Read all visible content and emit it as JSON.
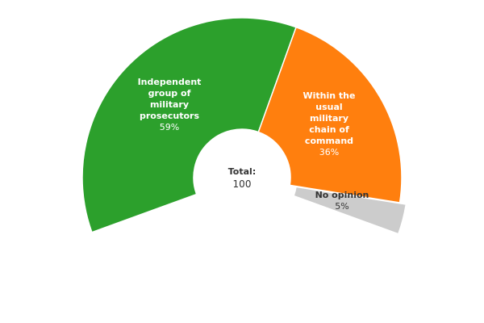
{
  "chart_data": {
    "type": "pie",
    "subtype": "semi-donut",
    "title": "",
    "slices": [
      {
        "label": "Independent group of military prosecutors",
        "lines": [
          "Independent",
          "group of",
          "military",
          "prosecutors"
        ],
        "value": 59,
        "percent_label": "59%",
        "color": "#2ca02c",
        "label_color": "#ffffff"
      },
      {
        "label": "Within the usual military chain of command",
        "lines": [
          "Within the",
          "usual",
          "military",
          "chain of",
          "command"
        ],
        "value": 36,
        "percent_label": "36%",
        "color": "#ff7f0e",
        "label_color": "#ffffff"
      },
      {
        "label": "No opinion",
        "lines": [
          "No opinion"
        ],
        "value": 5,
        "percent_label": "5%",
        "color": "#cccccc",
        "label_color": "#333333"
      }
    ],
    "center": {
      "title": "Total:",
      "value": "100"
    }
  }
}
